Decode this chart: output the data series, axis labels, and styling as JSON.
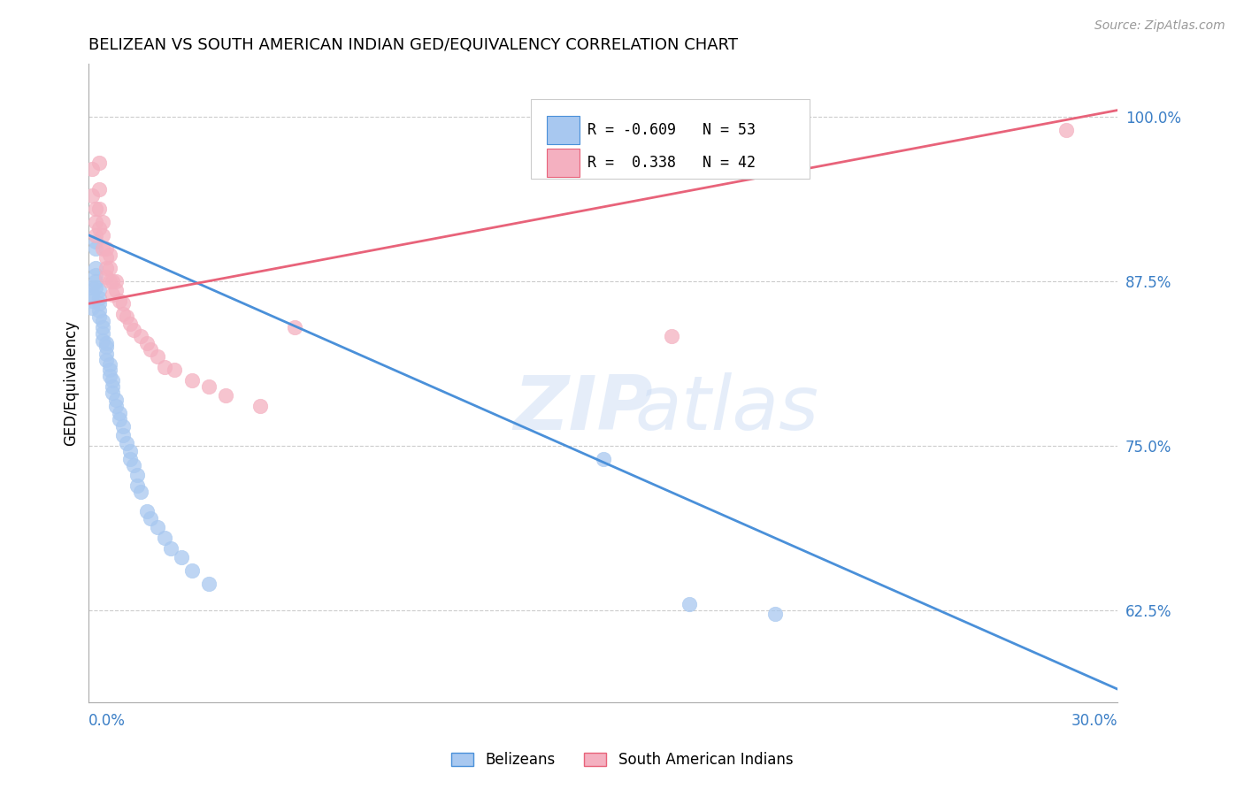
{
  "title": "BELIZEAN VS SOUTH AMERICAN INDIAN GED/EQUIVALENCY CORRELATION CHART",
  "source": "Source: ZipAtlas.com",
  "ylabel": "GED/Equivalency",
  "yticks": [
    0.625,
    0.75,
    0.875,
    1.0
  ],
  "ytick_labels": [
    "62.5%",
    "75.0%",
    "87.5%",
    "100.0%"
  ],
  "xmin": 0.0,
  "xmax": 0.3,
  "ymin": 0.555,
  "ymax": 1.04,
  "blue_R": -0.609,
  "blue_N": 53,
  "pink_R": 0.338,
  "pink_N": 42,
  "blue_color": "#A8C8F0",
  "pink_color": "#F4B0C0",
  "blue_line_color": "#4A90D9",
  "pink_line_color": "#E8637A",
  "legend_blue_label": "Belizeans",
  "legend_pink_label": "South American Indians",
  "blue_line_x0": 0.0,
  "blue_line_y0": 0.91,
  "blue_line_x1": 0.3,
  "blue_line_y1": 0.565,
  "pink_line_x0": 0.0,
  "pink_line_y0": 0.858,
  "pink_line_x1": 0.3,
  "pink_line_y1": 1.005,
  "blue_dots_x": [
    0.001,
    0.001,
    0.001,
    0.001,
    0.002,
    0.002,
    0.002,
    0.002,
    0.002,
    0.002,
    0.003,
    0.003,
    0.003,
    0.003,
    0.003,
    0.004,
    0.004,
    0.004,
    0.004,
    0.005,
    0.005,
    0.005,
    0.005,
    0.006,
    0.006,
    0.006,
    0.007,
    0.007,
    0.007,
    0.008,
    0.008,
    0.009,
    0.009,
    0.01,
    0.01,
    0.011,
    0.012,
    0.012,
    0.013,
    0.014,
    0.014,
    0.015,
    0.017,
    0.018,
    0.02,
    0.022,
    0.024,
    0.027,
    0.03,
    0.035,
    0.15,
    0.175,
    0.2
  ],
  "blue_dots_y": [
    0.87,
    0.865,
    0.86,
    0.855,
    0.905,
    0.9,
    0.885,
    0.88,
    0.875,
    0.87,
    0.868,
    0.862,
    0.858,
    0.853,
    0.848,
    0.845,
    0.84,
    0.835,
    0.83,
    0.828,
    0.825,
    0.82,
    0.815,
    0.812,
    0.808,
    0.803,
    0.8,
    0.795,
    0.79,
    0.785,
    0.78,
    0.775,
    0.77,
    0.765,
    0.758,
    0.752,
    0.746,
    0.74,
    0.735,
    0.728,
    0.72,
    0.715,
    0.7,
    0.695,
    0.688,
    0.68,
    0.672,
    0.665,
    0.655,
    0.645,
    0.74,
    0.63,
    0.622
  ],
  "pink_dots_x": [
    0.001,
    0.001,
    0.002,
    0.002,
    0.002,
    0.003,
    0.003,
    0.003,
    0.003,
    0.004,
    0.004,
    0.004,
    0.005,
    0.005,
    0.005,
    0.005,
    0.006,
    0.006,
    0.006,
    0.007,
    0.007,
    0.008,
    0.008,
    0.009,
    0.01,
    0.01,
    0.011,
    0.012,
    0.013,
    0.015,
    0.017,
    0.018,
    0.02,
    0.022,
    0.025,
    0.03,
    0.035,
    0.04,
    0.05,
    0.06,
    0.17,
    0.285
  ],
  "pink_dots_y": [
    0.96,
    0.94,
    0.93,
    0.92,
    0.91,
    0.965,
    0.945,
    0.93,
    0.915,
    0.92,
    0.91,
    0.9,
    0.9,
    0.893,
    0.885,
    0.878,
    0.895,
    0.885,
    0.875,
    0.875,
    0.865,
    0.875,
    0.868,
    0.86,
    0.858,
    0.85,
    0.848,
    0.843,
    0.838,
    0.833,
    0.828,
    0.823,
    0.818,
    0.81,
    0.808,
    0.8,
    0.795,
    0.788,
    0.78,
    0.84,
    0.833,
    0.99
  ]
}
